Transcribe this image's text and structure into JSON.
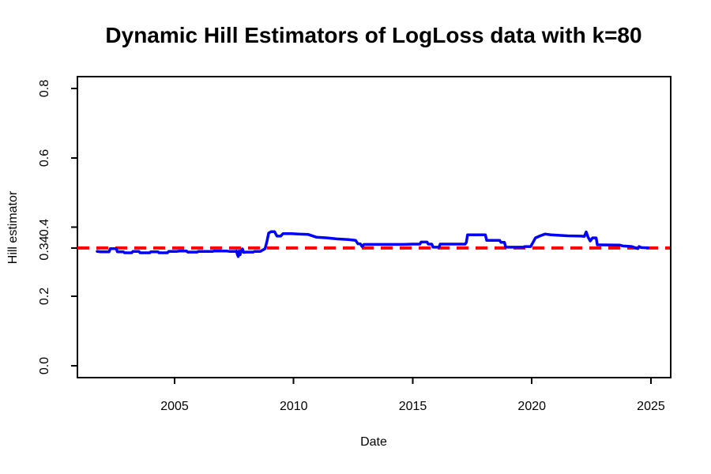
{
  "chart_data": {
    "type": "line",
    "title": "Dynamic Hill Estimators of LogLoss data with k=80",
    "xlabel": "Date",
    "ylabel": "Hill estimator",
    "grid": false,
    "legend": "none",
    "x_domain": [
      2000.92,
      2025.83
    ],
    "y_domain": [
      -0.0342,
      0.8342
    ],
    "x_ticks": [
      {
        "value": 2005,
        "label": "2005"
      },
      {
        "value": 2010,
        "label": "2010"
      },
      {
        "value": 2015,
        "label": "2015"
      },
      {
        "value": 2020,
        "label": "2020"
      },
      {
        "value": 2025,
        "label": "2025"
      }
    ],
    "y_ticks": [
      {
        "value": 0.0,
        "label": "0.0"
      },
      {
        "value": 0.2,
        "label": "0.2"
      },
      {
        "value": 0.4,
        "label": "0.4"
      },
      {
        "value": 0.6,
        "label": "0.6"
      },
      {
        "value": 0.8,
        "label": "0.8"
      },
      {
        "value": 0.34,
        "label": "0.34"
      }
    ],
    "reference_line": {
      "value": 0.34,
      "label": "0.34",
      "color": "#ff0000",
      "style": "dashed",
      "x_range": [
        2000.92,
        2025.8
      ]
    },
    "series": [
      {
        "name": "Dynamic Hill estimator",
        "color": "#0000ff",
        "points": [
          [
            2001.75,
            0.33
          ],
          [
            2001.9,
            0.329
          ],
          [
            2002.25,
            0.329
          ],
          [
            2002.3,
            0.338
          ],
          [
            2002.55,
            0.338
          ],
          [
            2002.6,
            0.329
          ],
          [
            2002.85,
            0.329
          ],
          [
            2002.9,
            0.326
          ],
          [
            2003.2,
            0.326
          ],
          [
            2003.25,
            0.33
          ],
          [
            2003.5,
            0.33
          ],
          [
            2003.55,
            0.326
          ],
          [
            2003.95,
            0.326
          ],
          [
            2004.0,
            0.329
          ],
          [
            2004.3,
            0.329
          ],
          [
            2004.35,
            0.326
          ],
          [
            2004.7,
            0.326
          ],
          [
            2004.75,
            0.33
          ],
          [
            2005.1,
            0.33
          ],
          [
            2005.2,
            0.331
          ],
          [
            2005.5,
            0.331
          ],
          [
            2005.55,
            0.328
          ],
          [
            2005.95,
            0.328
          ],
          [
            2006.0,
            0.33
          ],
          [
            2006.6,
            0.33
          ],
          [
            2006.65,
            0.331
          ],
          [
            2007.2,
            0.331
          ],
          [
            2007.3,
            0.33
          ],
          [
            2007.55,
            0.33
          ],
          [
            2007.6,
            0.331
          ],
          [
            2007.63,
            0.322
          ],
          [
            2007.67,
            0.315
          ],
          [
            2007.71,
            0.331
          ],
          [
            2007.75,
            0.32
          ],
          [
            2007.8,
            0.332
          ],
          [
            2007.85,
            0.337
          ],
          [
            2007.9,
            0.327
          ],
          [
            2008.0,
            0.328
          ],
          [
            2008.3,
            0.328
          ],
          [
            2008.35,
            0.33
          ],
          [
            2008.6,
            0.33
          ],
          [
            2008.7,
            0.334
          ],
          [
            2008.8,
            0.338
          ],
          [
            2008.88,
            0.36
          ],
          [
            2008.95,
            0.383
          ],
          [
            2009.05,
            0.387
          ],
          [
            2009.2,
            0.387
          ],
          [
            2009.25,
            0.38
          ],
          [
            2009.3,
            0.374
          ],
          [
            2009.45,
            0.374
          ],
          [
            2009.55,
            0.381
          ],
          [
            2009.9,
            0.381
          ],
          [
            2010.2,
            0.38
          ],
          [
            2010.6,
            0.379
          ],
          [
            2010.95,
            0.371
          ],
          [
            2011.4,
            0.369
          ],
          [
            2011.8,
            0.366
          ],
          [
            2012.3,
            0.364
          ],
          [
            2012.6,
            0.362
          ],
          [
            2012.7,
            0.352
          ],
          [
            2012.8,
            0.352
          ],
          [
            2012.87,
            0.344
          ],
          [
            2012.95,
            0.35
          ],
          [
            2013.5,
            0.35
          ],
          [
            2014.6,
            0.35
          ],
          [
            2015.0,
            0.351
          ],
          [
            2015.3,
            0.351
          ],
          [
            2015.35,
            0.357
          ],
          [
            2015.6,
            0.357
          ],
          [
            2015.65,
            0.351
          ],
          [
            2015.8,
            0.351
          ],
          [
            2015.85,
            0.342
          ],
          [
            2016.1,
            0.342
          ],
          [
            2016.15,
            0.351
          ],
          [
            2017.2,
            0.351
          ],
          [
            2017.25,
            0.356
          ],
          [
            2017.3,
            0.378
          ],
          [
            2018.05,
            0.378
          ],
          [
            2018.1,
            0.362
          ],
          [
            2018.65,
            0.362
          ],
          [
            2018.7,
            0.356
          ],
          [
            2018.85,
            0.356
          ],
          [
            2018.9,
            0.342
          ],
          [
            2019.65,
            0.342
          ],
          [
            2019.7,
            0.344
          ],
          [
            2019.95,
            0.344
          ],
          [
            2020.05,
            0.356
          ],
          [
            2020.15,
            0.369
          ],
          [
            2020.35,
            0.375
          ],
          [
            2020.55,
            0.38
          ],
          [
            2020.8,
            0.378
          ],
          [
            2021.5,
            0.375
          ],
          [
            2022.1,
            0.374
          ],
          [
            2022.2,
            0.373
          ],
          [
            2022.28,
            0.386
          ],
          [
            2022.36,
            0.371
          ],
          [
            2022.45,
            0.36
          ],
          [
            2022.55,
            0.369
          ],
          [
            2022.7,
            0.369
          ],
          [
            2022.75,
            0.349
          ],
          [
            2023.7,
            0.348
          ],
          [
            2023.8,
            0.346
          ],
          [
            2024.2,
            0.344
          ],
          [
            2024.35,
            0.34
          ],
          [
            2024.45,
            0.338
          ],
          [
            2024.5,
            0.344
          ],
          [
            2024.6,
            0.341
          ],
          [
            2024.87,
            0.34
          ]
        ]
      }
    ],
    "colors": {
      "axis": "#000000",
      "text": "#000000",
      "background": "#ffffff"
    }
  }
}
